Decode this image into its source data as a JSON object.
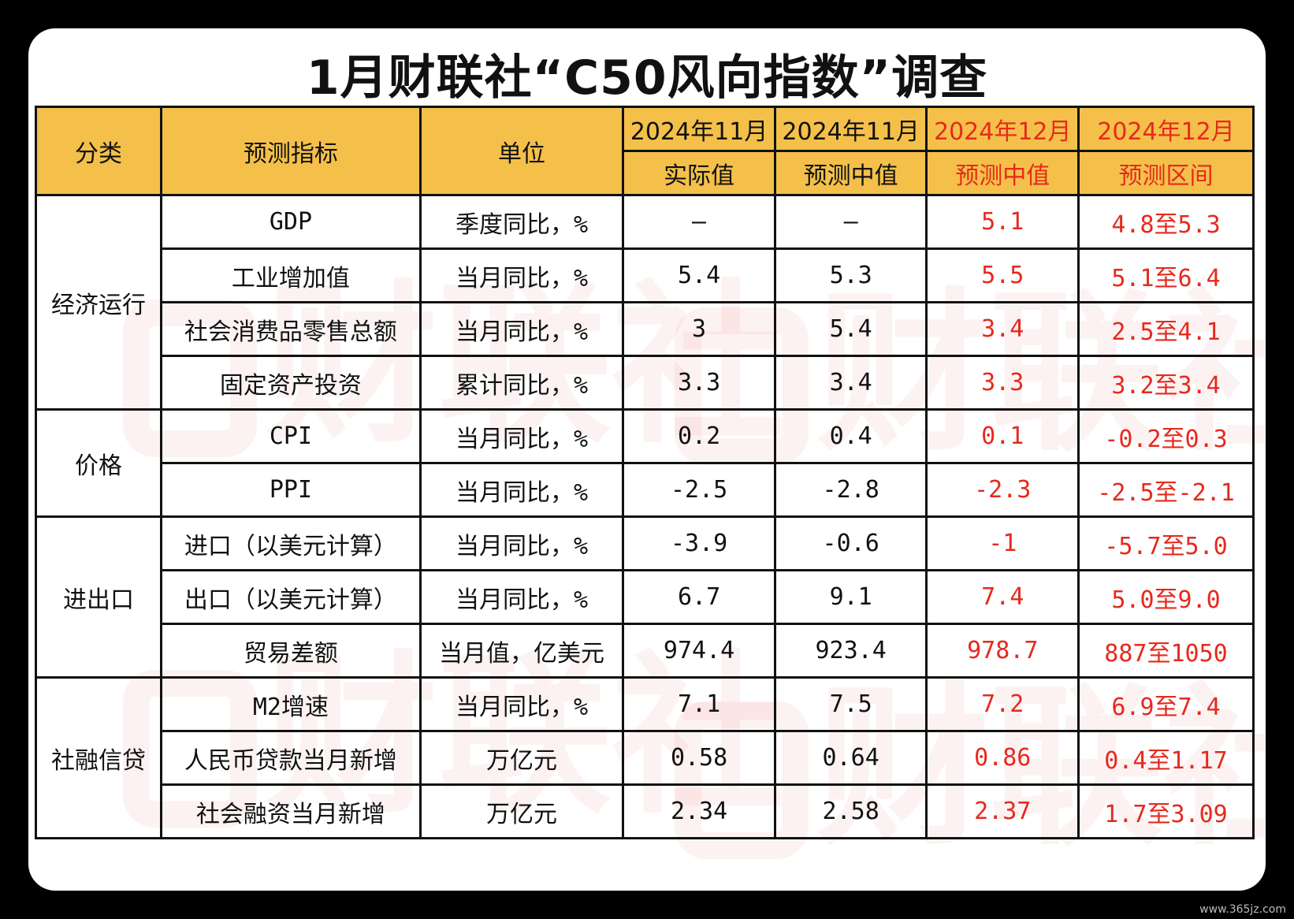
{
  "title": "1月财联社“C50风向指数”调查",
  "watermark_text": "财联社",
  "site_tag": "www.365jz.com",
  "colors": {
    "header_bg": "#f4c04a",
    "forecast_text": "#e52a1e",
    "border": "#111111"
  },
  "header": {
    "category": "分类",
    "indicator": "预测指标",
    "unit": "单位",
    "col1_period": "2024年11月",
    "col1_label": "实际值",
    "col2_period": "2024年11月",
    "col2_label": "预测中值",
    "col3_period": "2024年12月",
    "col3_label": "预测中值",
    "col4_period": "2024年12月",
    "col4_label": "预测区间"
  },
  "groups": [
    {
      "category": "经济运行",
      "rows": [
        {
          "indicator": "GDP",
          "unit": "季度同比，%",
          "actual": "—",
          "median_nov": "—",
          "median_dec": "5.1",
          "range_dec": "4.8至5.3"
        },
        {
          "indicator": "工业增加值",
          "unit": "当月同比，%",
          "actual": "5.4",
          "median_nov": "5.3",
          "median_dec": "5.5",
          "range_dec": "5.1至6.4"
        },
        {
          "indicator": "社会消费品零售总额",
          "unit": "当月同比，%",
          "actual": "3",
          "median_nov": "5.4",
          "median_dec": "3.4",
          "range_dec": "2.5至4.1"
        },
        {
          "indicator": "固定资产投资",
          "unit": "累计同比，%",
          "actual": "3.3",
          "median_nov": "3.4",
          "median_dec": "3.3",
          "range_dec": "3.2至3.4"
        }
      ]
    },
    {
      "category": "价格",
      "rows": [
        {
          "indicator": "CPI",
          "unit": "当月同比，%",
          "actual": "0.2",
          "median_nov": "0.4",
          "median_dec": "0.1",
          "range_dec": "-0.2至0.3"
        },
        {
          "indicator": "PPI",
          "unit": "当月同比，%",
          "actual": "-2.5",
          "median_nov": "-2.8",
          "median_dec": "-2.3",
          "range_dec": "-2.5至-2.1"
        }
      ]
    },
    {
      "category": "进出口",
      "rows": [
        {
          "indicator": "进口（以美元计算）",
          "unit": "当月同比，%",
          "actual": "-3.9",
          "median_nov": "-0.6",
          "median_dec": "-1",
          "range_dec": "-5.7至5.0"
        },
        {
          "indicator": "出口（以美元计算）",
          "unit": "当月同比，%",
          "actual": "6.7",
          "median_nov": "9.1",
          "median_dec": "7.4",
          "range_dec": "5.0至9.0"
        },
        {
          "indicator": "贸易差额",
          "unit": "当月值，亿美元",
          "actual": "974.4",
          "median_nov": "923.4",
          "median_dec": "978.7",
          "range_dec": "887至1050"
        }
      ]
    },
    {
      "category": "社融信贷",
      "rows": [
        {
          "indicator": "M2增速",
          "unit": "当月同比，%",
          "actual": "7.1",
          "median_nov": "7.5",
          "median_dec": "7.2",
          "range_dec": "6.9至7.4"
        },
        {
          "indicator": "人民币贷款当月新增",
          "unit": "万亿元",
          "actual": "0.58",
          "median_nov": "0.64",
          "median_dec": "0.86",
          "range_dec": "0.4至1.17"
        },
        {
          "indicator": "社会融资当月新增",
          "unit": "万亿元",
          "actual": "2.34",
          "median_nov": "2.58",
          "median_dec": "2.37",
          "range_dec": "1.7至3.09"
        }
      ]
    }
  ]
}
